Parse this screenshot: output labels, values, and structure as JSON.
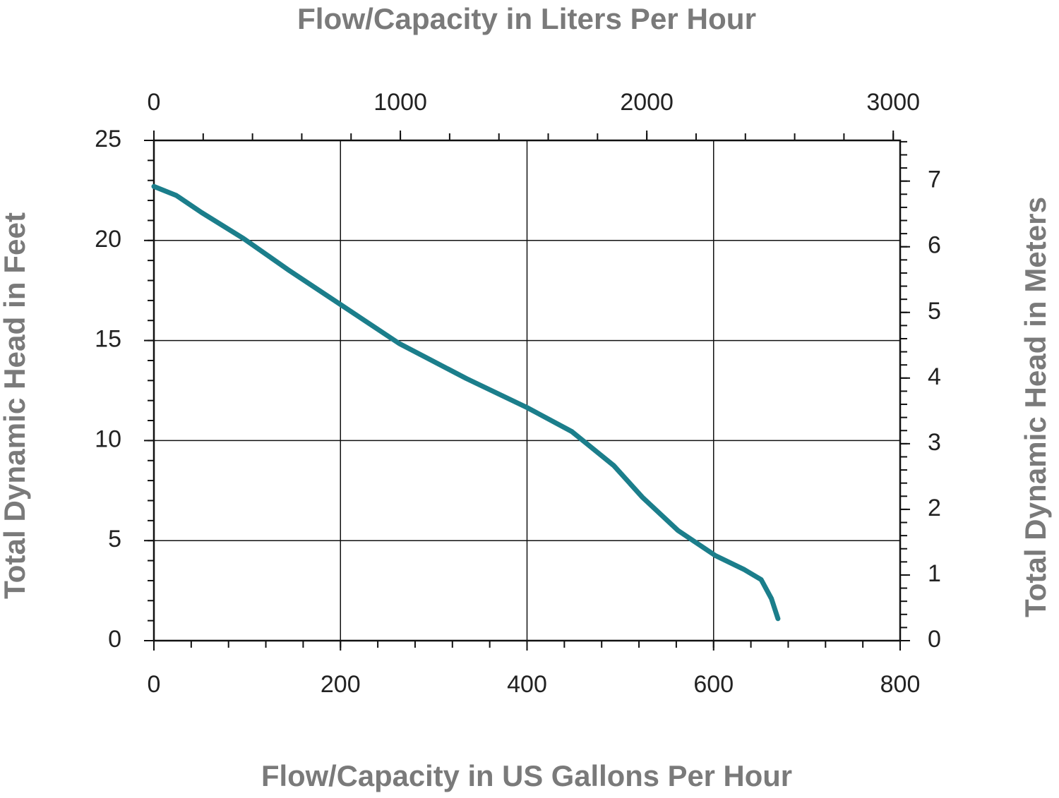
{
  "chart_data": {
    "type": "line",
    "xlabel": "Flow/Capacity in US Gallons Per Hour",
    "ylabel": "Total Dynamic Head in Feet",
    "x2label": "Flow/Capacity in Liters Per Hour",
    "y2label": "Total Dynamic Head in Meters",
    "x": [
      0,
      24,
      51,
      96,
      145,
      200,
      263,
      335,
      400,
      448,
      493,
      524,
      562,
      602,
      633,
      651,
      662,
      669
    ],
    "series": [
      {
        "color": "#1b7e8b",
        "values": [
          22.7,
          22.25,
          21.4,
          20.1,
          18.5,
          16.8,
          14.85,
          13.1,
          11.65,
          10.45,
          8.75,
          7.15,
          5.5,
          4.25,
          3.55,
          3.05,
          2.1,
          1.1
        ]
      }
    ],
    "xlim": [
      0,
      800
    ],
    "xticks": [
      0,
      200,
      400,
      600,
      800
    ],
    "xminor": 40,
    "ylim": [
      0,
      25
    ],
    "yticks": [
      0,
      5,
      10,
      15,
      20,
      25
    ],
    "yminor": 1,
    "x2lim": [
      0,
      3028
    ],
    "x2ticks": [
      0,
      1000,
      2000,
      3000
    ],
    "x2minor": 200,
    "y2lim": [
      0,
      7.62
    ],
    "y2ticks": [
      0,
      1,
      2,
      3,
      4,
      5,
      6,
      7
    ],
    "y2minor": 0.2,
    "grid": true
  }
}
